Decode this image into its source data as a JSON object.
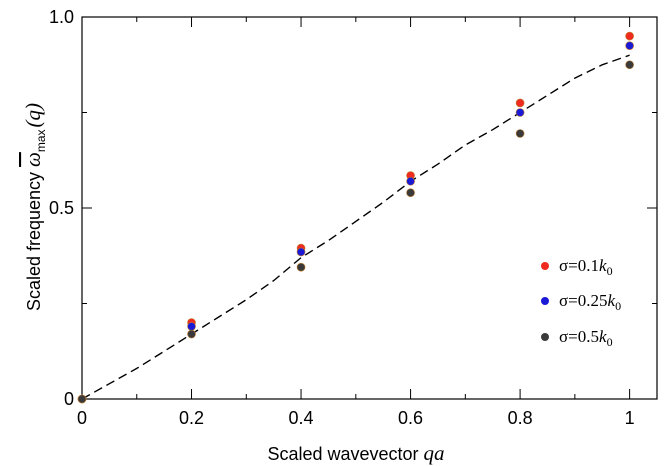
{
  "chart_data": {
    "type": "scatter",
    "xlabel": "Scaled wavevector",
    "xlabel_math": "qa",
    "ylabel": "Scaled frequency",
    "ylabel_math_symbol": "ω",
    "ylabel_math_sub": "max",
    "ylabel_math_arg": "(q)",
    "xlim": [
      0,
      1.05
    ],
    "ylim": [
      0,
      1.0
    ],
    "x_ticks": [
      0,
      0.2,
      0.4,
      0.6,
      0.8,
      1
    ],
    "x_tick_labels": [
      "0",
      "0.2",
      "0.4",
      "0.6",
      "0.8",
      "1"
    ],
    "y_ticks": [
      0,
      0.5,
      1.0
    ],
    "y_tick_labels": [
      "0",
      "0.5",
      "1.0"
    ],
    "grid": false,
    "legend_position": "bottom-right",
    "series": [
      {
        "name": "σ=0.1k0",
        "label_prefix": "σ=0.1",
        "label_italic": "k",
        "label_sub": "0",
        "color": "#ee2b1e",
        "x": [
          0,
          0.2,
          0.4,
          0.6,
          0.8,
          1.0
        ],
        "y": [
          0,
          0.2,
          0.395,
          0.585,
          0.775,
          0.95
        ]
      },
      {
        "name": "σ=0.25k0",
        "label_prefix": "σ=0.25",
        "label_italic": "k",
        "label_sub": "0",
        "color": "#1a1ad6",
        "x": [
          0,
          0.2,
          0.4,
          0.6,
          0.8,
          1.0
        ],
        "y": [
          0,
          0.19,
          0.385,
          0.57,
          0.75,
          0.925
        ]
      },
      {
        "name": "σ=0.5k0",
        "label_prefix": "σ=0.5",
        "label_italic": "k",
        "label_sub": "0",
        "color": "#3a3a3a",
        "x": [
          0,
          0.2,
          0.4,
          0.6,
          0.8,
          1.0
        ],
        "y": [
          0,
          0.17,
          0.345,
          0.54,
          0.695,
          0.875
        ]
      }
    ],
    "dashed_line": {
      "x": [
        0,
        0.05,
        0.1,
        0.15,
        0.2,
        0.25,
        0.3,
        0.35,
        0.4,
        0.45,
        0.5,
        0.55,
        0.6,
        0.65,
        0.7,
        0.75,
        0.8,
        0.85,
        0.9,
        0.95,
        1.0
      ],
      "y": [
        0,
        0.04,
        0.08,
        0.125,
        0.17,
        0.215,
        0.26,
        0.31,
        0.37,
        0.415,
        0.465,
        0.515,
        0.57,
        0.615,
        0.665,
        0.705,
        0.75,
        0.795,
        0.84,
        0.875,
        0.9
      ]
    }
  }
}
